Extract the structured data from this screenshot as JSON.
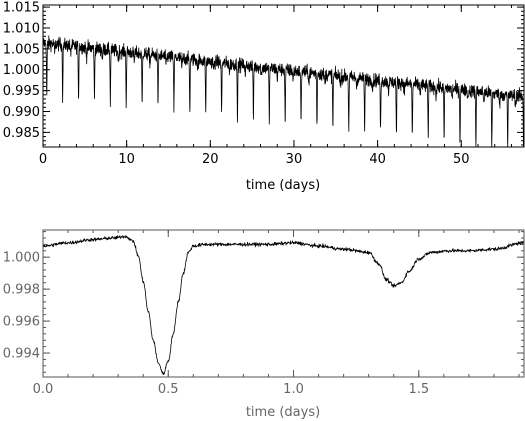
{
  "chart_data": [
    {
      "type": "line",
      "title": "",
      "xlabel": "time (days)",
      "ylabel": "",
      "xlim": [
        0,
        57.5
      ],
      "ylim": [
        0.9815,
        1.0155
      ],
      "x_ticks": [
        0,
        10,
        20,
        30,
        40,
        50
      ],
      "x_tick_labels": [
        "0",
        "10",
        "20",
        "30",
        "40",
        "50"
      ],
      "y_ticks": [
        0.985,
        0.99,
        0.995,
        1.0,
        1.005,
        1.01,
        1.015
      ],
      "y_tick_labels": [
        "0.985",
        "0.990",
        "0.995",
        "1.000",
        "1.005",
        "1.010",
        "1.015"
      ],
      "grid": false,
      "series": [
        {
          "trend": {
            "x": [
              0,
              57.5
            ],
            "y": [
              1.0065,
              0.9935
            ]
          },
          "noise_amplitude": 0.0028,
          "dip_period": 1.9,
          "dip_first_time": 0.45,
          "primary_dip_depth": 0.0125,
          "secondary_dip_depth": 0.0022,
          "color": "#000000"
        }
      ]
    },
    {
      "type": "line",
      "title": "",
      "xlabel": "time (days)",
      "ylabel": "",
      "xlim": [
        0,
        1.92
      ],
      "ylim": [
        0.9925,
        1.0017
      ],
      "x_ticks": [
        0,
        0.5,
        1.0,
        1.5
      ],
      "x_tick_labels": [
        "0.0",
        "0.5",
        "1.0",
        "1.5"
      ],
      "y_ticks": [
        0.994,
        0.996,
        0.998,
        1.0
      ],
      "y_tick_labels": [
        "0.994",
        "0.996",
        "0.998",
        "1.000"
      ],
      "grid": false,
      "series": [
        {
          "x": [
            0,
            0.1,
            0.2,
            0.28,
            0.33,
            0.36,
            0.38,
            0.4,
            0.42,
            0.44,
            0.46,
            0.48,
            0.5,
            0.52,
            0.54,
            0.56,
            0.58,
            0.6,
            0.65,
            0.75,
            0.9,
            1.0,
            1.1,
            1.2,
            1.3,
            1.34,
            1.37,
            1.4,
            1.43,
            1.46,
            1.5,
            1.55,
            1.62,
            1.7,
            1.8,
            1.92
          ],
          "y": [
            1.0007,
            1.0009,
            1.0011,
            1.0012,
            1.0013,
            1.001,
            1.0001,
            0.9985,
            0.9966,
            0.9948,
            0.9934,
            0.9927,
            0.9935,
            0.9952,
            0.9972,
            0.999,
            1.0003,
            1.0007,
            1.0008,
            1.0008,
            1.0008,
            1.0009,
            1.0007,
            1.0005,
            1.0003,
            0.9996,
            0.9986,
            0.9982,
            0.9984,
            0.9991,
            0.9999,
            1.0003,
            1.0004,
            1.0004,
            1.0005,
            1.0009
          ],
          "noise_amplitude": 0.00018,
          "color": "#000000"
        }
      ]
    }
  ]
}
